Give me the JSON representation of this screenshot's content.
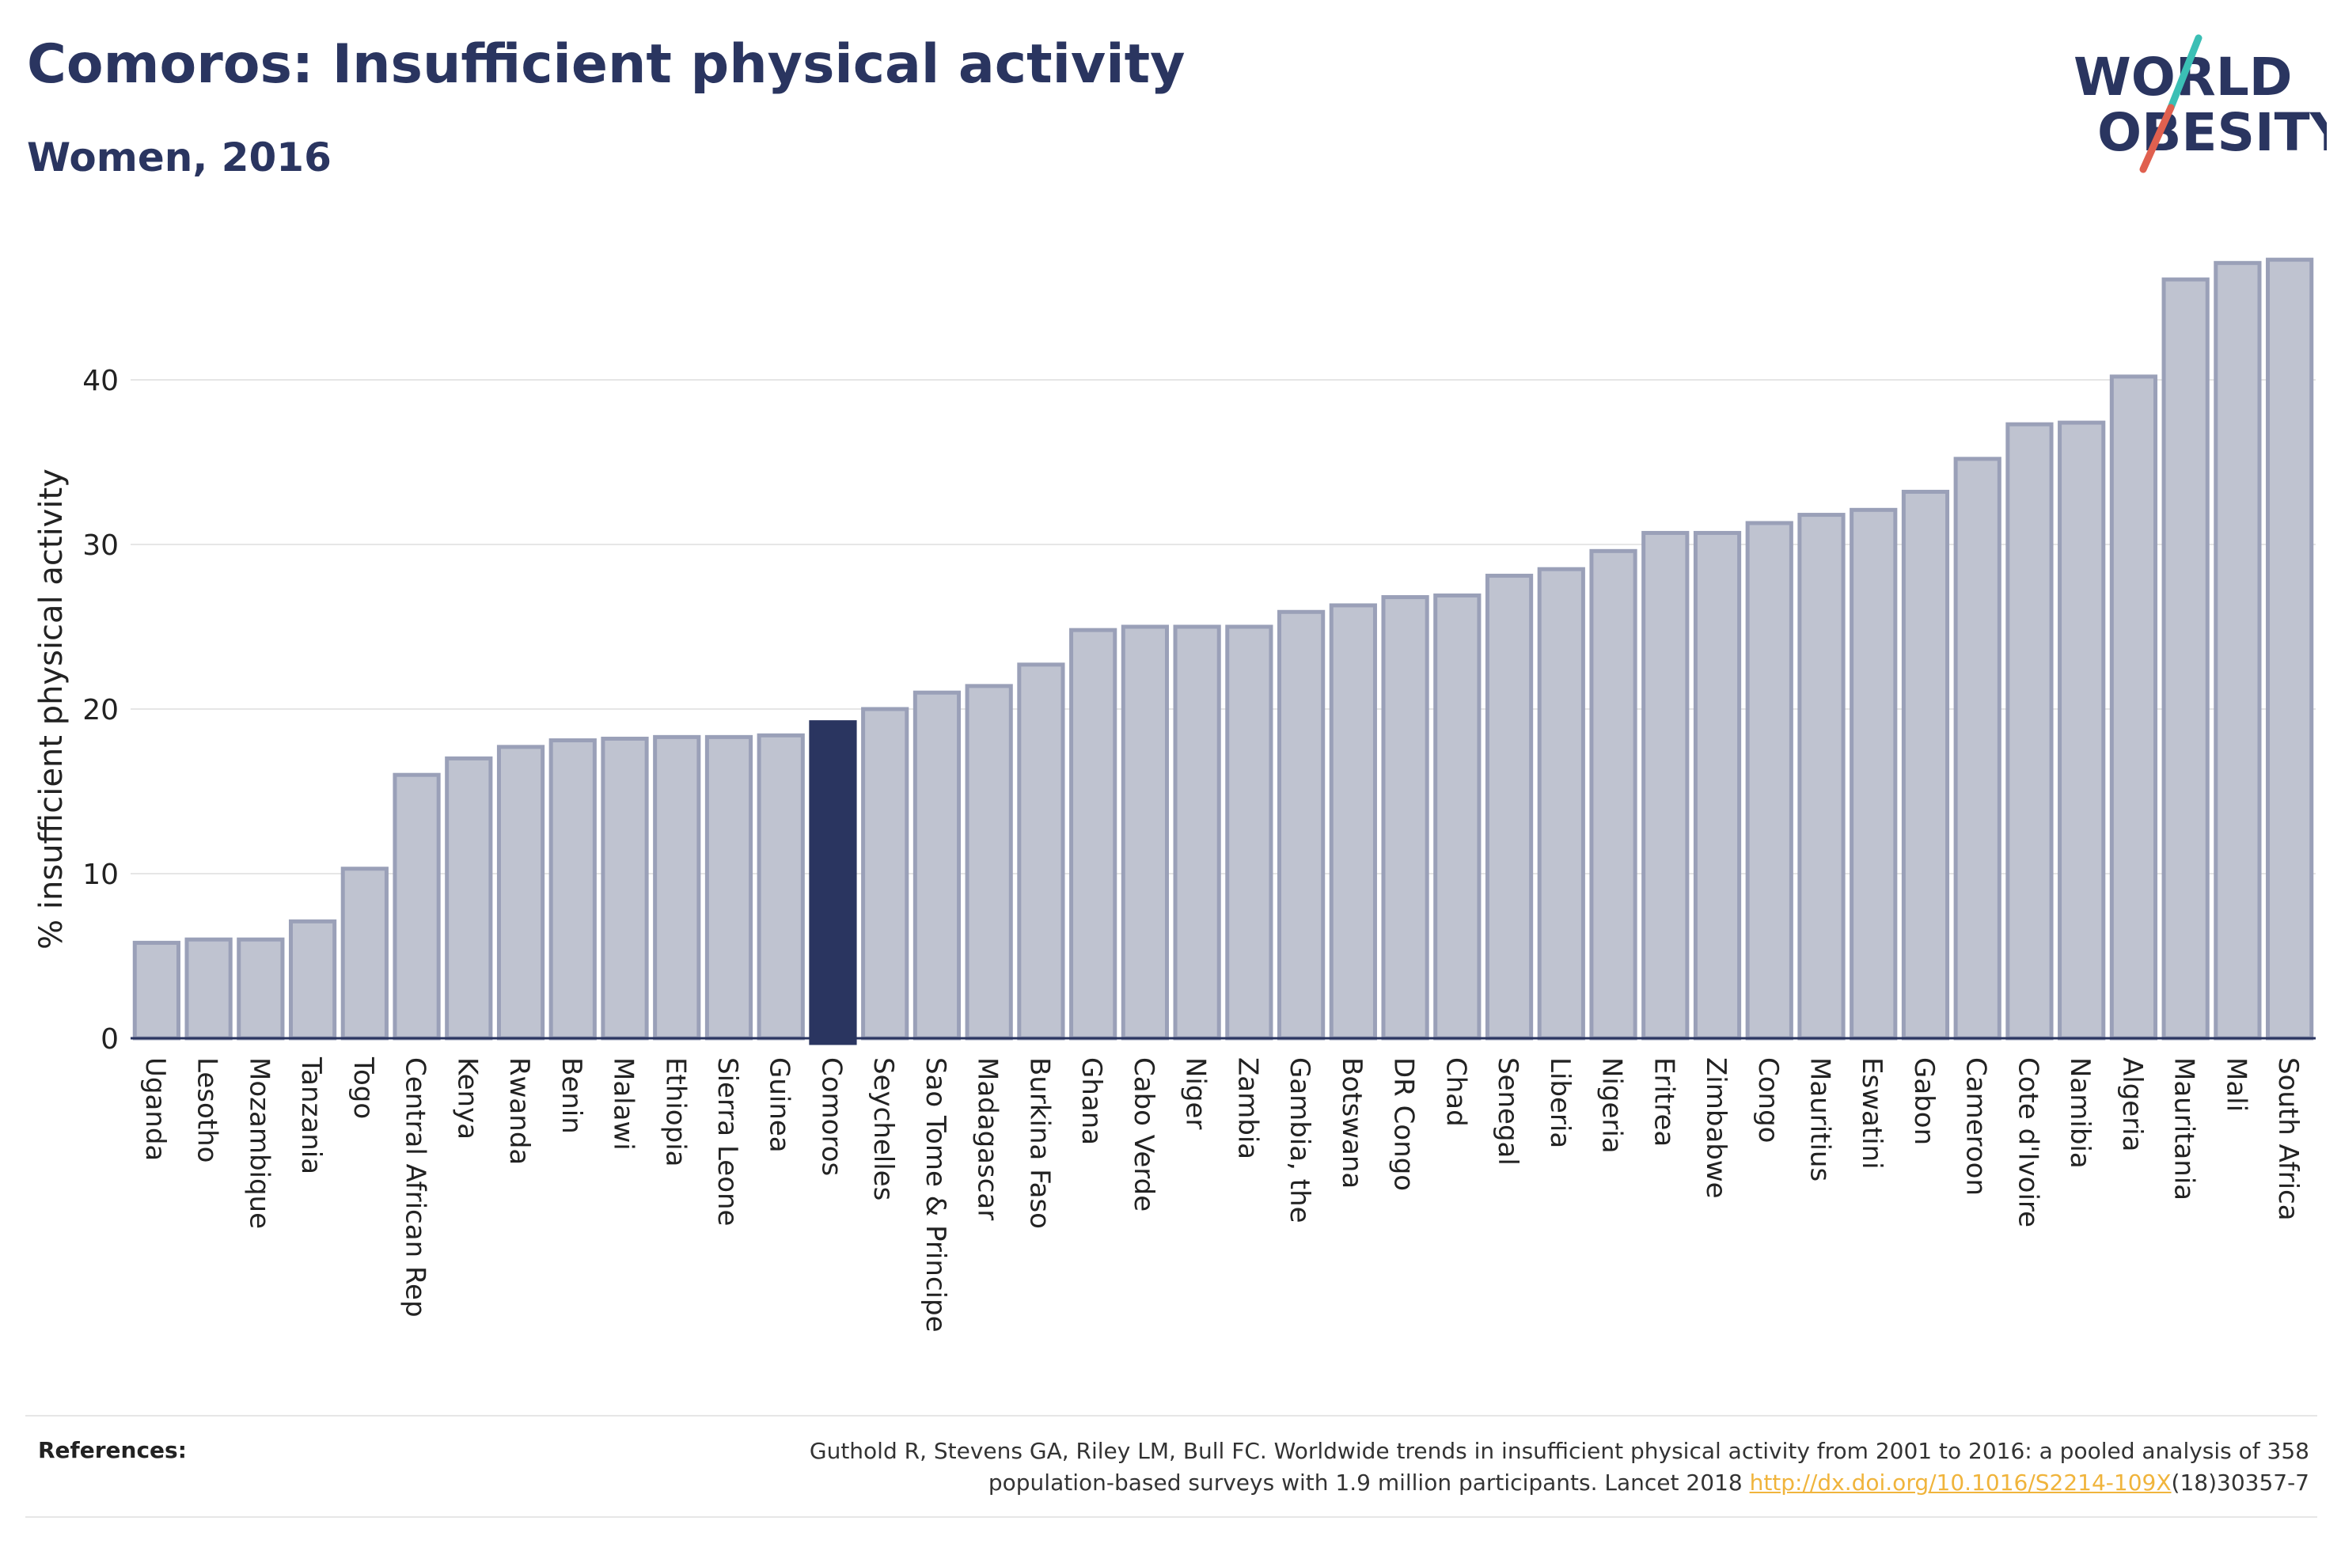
{
  "header": {
    "title": "Comoros: Insufficient physical activity",
    "subtitle": "Women, 2016"
  },
  "logo": {
    "line1": "WORLD",
    "line2": "OBESITY"
  },
  "colors": {
    "bar_fill": "#bfc3d0",
    "bar_stroke": "#9aa0b8",
    "highlight": "#2a3560",
    "title": "#2a3560",
    "link": "#f0b43c",
    "logo_teal": "#3bbfb5",
    "logo_red": "#e0604f"
  },
  "chart_data": {
    "type": "bar",
    "title": "Comoros: Insufficient physical activity",
    "subtitle": "Women, 2016",
    "xlabel": "",
    "ylabel": "% insufficient physical activity",
    "ylim": [
      0,
      48
    ],
    "yticks": [
      0,
      10,
      20,
      30,
      40
    ],
    "grid": true,
    "highlight_category": "Comoros",
    "categories": [
      "Uganda",
      "Lesotho",
      "Mozambique",
      "Tanzania",
      "Togo",
      "Central African Rep",
      "Kenya",
      "Rwanda",
      "Benin",
      "Malawi",
      "Ethiopia",
      "Sierra Leone",
      "Guinea",
      "Comoros",
      "Seychelles",
      "Sao Tome & Principe",
      "Madagascar",
      "Burkina Faso",
      "Ghana",
      "Cabo Verde",
      "Niger",
      "Zambia",
      "Gambia, the",
      "Botswana",
      "DR Congo",
      "Chad",
      "Senegal",
      "Liberia",
      "Nigeria",
      "Eritrea",
      "Zimbabwe",
      "Congo",
      "Mauritius",
      "Eswatini",
      "Gabon",
      "Cameroon",
      "Cote d'Ivoire",
      "Namibia",
      "Algeria",
      "Mauritania",
      "Mali",
      "South Africa"
    ],
    "values": [
      5.8,
      6.0,
      6.0,
      7.1,
      10.3,
      16.0,
      17.0,
      17.7,
      18.1,
      18.2,
      18.3,
      18.3,
      18.4,
      19.2,
      20.0,
      21.0,
      21.4,
      22.7,
      24.8,
      25.0,
      25.0,
      25.0,
      25.9,
      26.3,
      26.8,
      26.9,
      28.1,
      28.5,
      29.6,
      30.7,
      30.7,
      31.3,
      31.8,
      32.1,
      33.2,
      35.2,
      37.3,
      37.4,
      40.2,
      46.1,
      47.1,
      47.3
    ]
  },
  "footer": {
    "references_label": "References:",
    "reference_text_1": "Guthold R, Stevens GA, Riley LM, Bull FC. Worldwide trends in insufficient physical activity from 2001 to 2016: a pooled analysis of 358",
    "reference_text_2": "population-based surveys with 1.9 million participants. Lancet 2018 ",
    "reference_link": "http://dx.doi.org/10.1016/S2214-109X",
    "reference_text_3": "(18)30357-7"
  }
}
